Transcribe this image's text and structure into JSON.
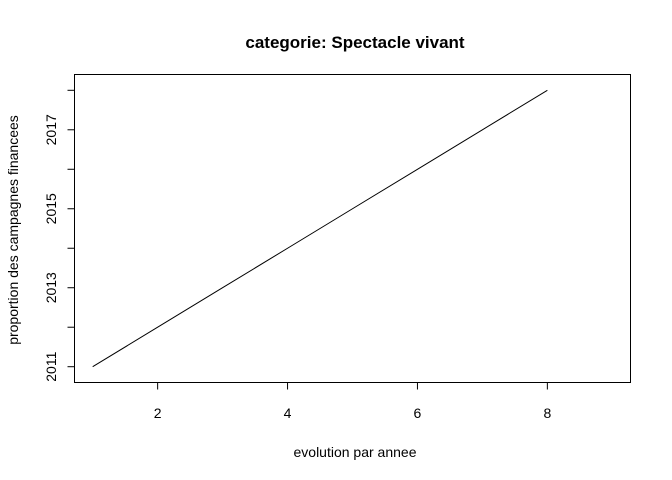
{
  "chart_data": {
    "type": "line",
    "title": "categorie: Spectacle vivant",
    "xlabel": "evolution par annee",
    "ylabel": "proportion des campagnes financees",
    "x": [
      1,
      2,
      3,
      4,
      5,
      6,
      7,
      8
    ],
    "series": [
      {
        "values": [
          2011,
          2012,
          2013,
          2014,
          2015,
          2016,
          2017,
          2018
        ]
      }
    ],
    "xlim": [
      0.72,
      9.28
    ],
    "ylim": [
      2010.6,
      2018.4
    ],
    "xticks": [
      2,
      4,
      6,
      8
    ],
    "yticks": [
      2011,
      2012,
      2013,
      2014,
      2015,
      2016,
      2017,
      2018
    ],
    "ytick_labels": [
      "2011",
      "",
      "2013",
      "",
      "2015",
      "",
      "2017",
      ""
    ],
    "line_color": "#000000",
    "grid": false,
    "legend": "none"
  }
}
